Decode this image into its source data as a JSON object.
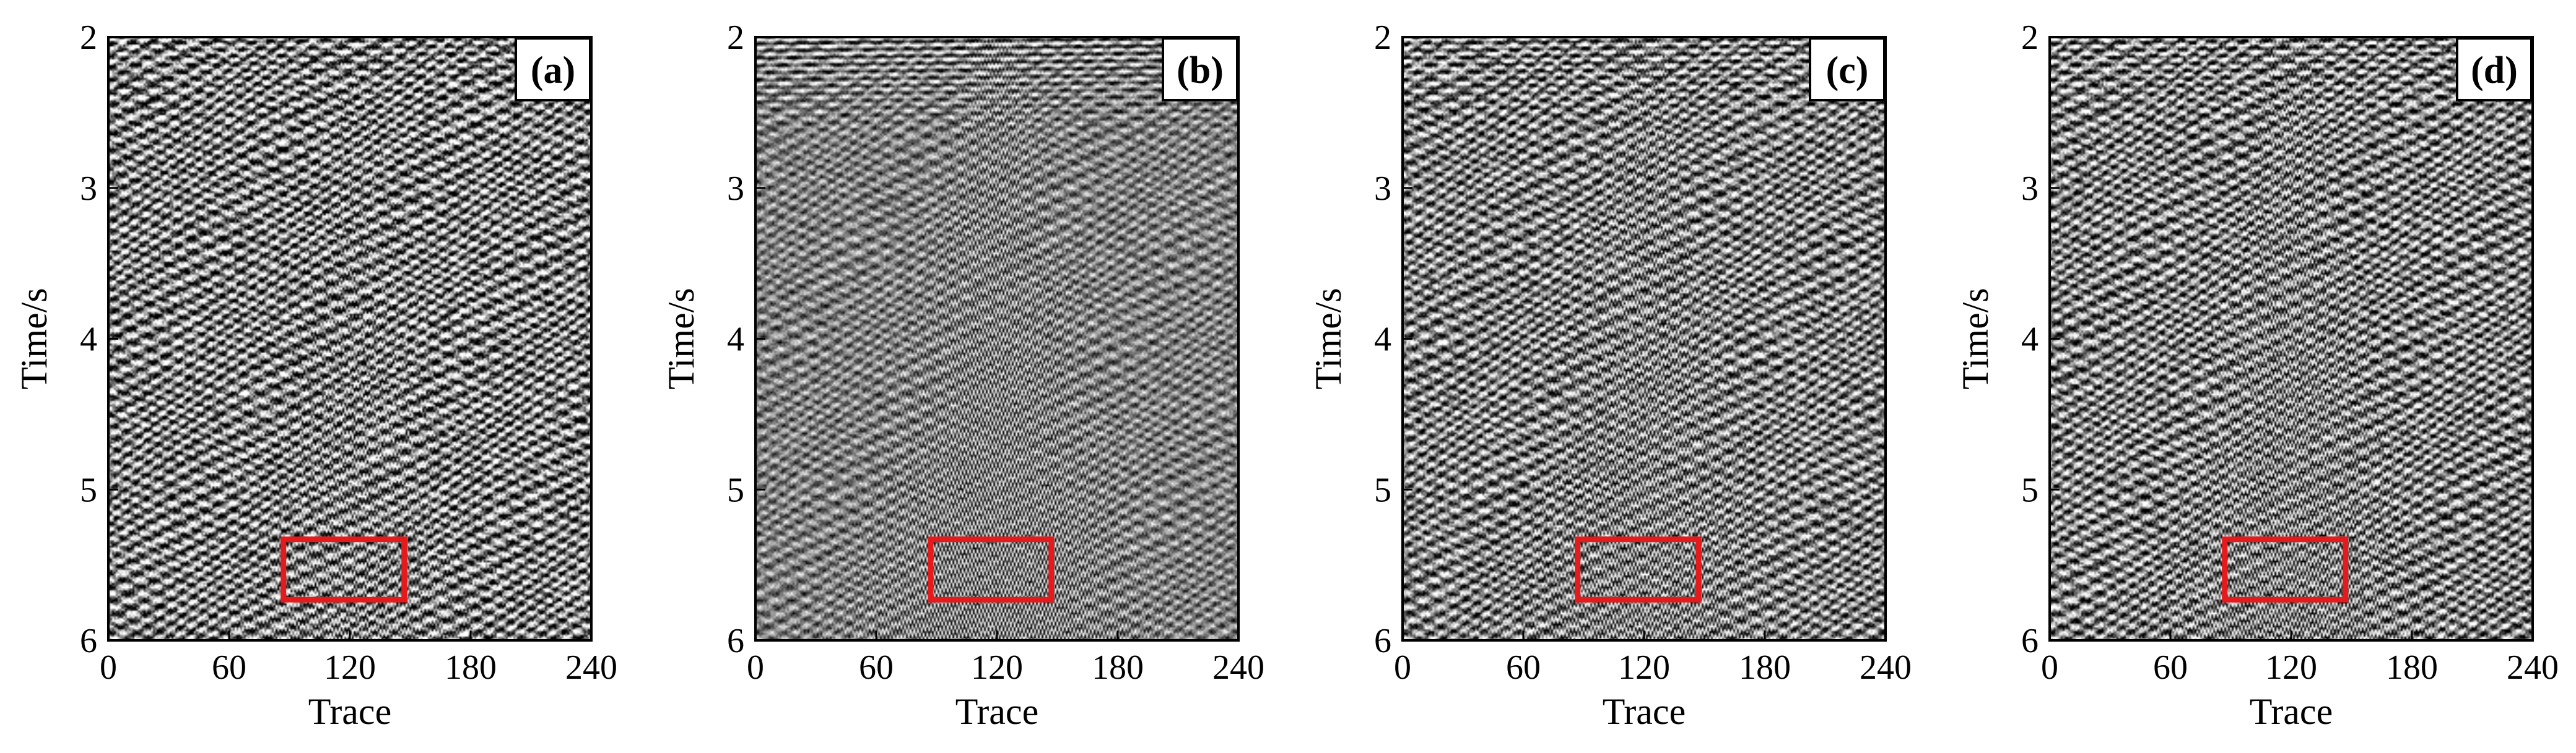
{
  "chart_data": [
    {
      "type": "heatmap",
      "panel_label": "(a)",
      "xlabel": "Trace",
      "ylabel": "Time/s",
      "xlim": [
        0,
        240
      ],
      "ylim": [
        6,
        2
      ],
      "x_ticks": [
        "0",
        "60",
        "120",
        "180",
        "240"
      ],
      "y_ticks": [
        "2",
        "3",
        "4",
        "5",
        "6"
      ],
      "highlight_box": {
        "x": [
          87,
          147
        ],
        "y": [
          5.33,
          5.73
        ],
        "color": "#e41a1c"
      },
      "texture": {
        "noise_level": 0.92,
        "hyperbola_strength": 0.45,
        "top_reflection_strength": 0.35
      }
    },
    {
      "type": "heatmap",
      "panel_label": "(b)",
      "xlabel": "Trace",
      "ylabel": "Time/s",
      "xlim": [
        0,
        240
      ],
      "ylim": [
        6,
        2
      ],
      "x_ticks": [
        "0",
        "60",
        "120",
        "180",
        "240"
      ],
      "y_ticks": [
        "2",
        "3",
        "4",
        "5",
        "6"
      ],
      "highlight_box": {
        "x": [
          87,
          147
        ],
        "y": [
          5.33,
          5.73
        ],
        "color": "#e41a1c"
      },
      "texture": {
        "noise_level": 0.45,
        "hyperbola_strength": 1.0,
        "top_reflection_strength": 0.55
      }
    },
    {
      "type": "heatmap",
      "panel_label": "(c)",
      "xlabel": "Trace",
      "ylabel": "Time/s",
      "xlim": [
        0,
        240
      ],
      "ylim": [
        6,
        2
      ],
      "x_ticks": [
        "0",
        "60",
        "120",
        "180",
        "240"
      ],
      "y_ticks": [
        "2",
        "3",
        "4",
        "5",
        "6"
      ],
      "highlight_box": {
        "x": [
          87,
          147
        ],
        "y": [
          5.33,
          5.73
        ],
        "color": "#e41a1c"
      },
      "texture": {
        "noise_level": 0.75,
        "hyperbola_strength": 0.75,
        "top_reflection_strength": 0.45
      }
    },
    {
      "type": "heatmap",
      "panel_label": "(d)",
      "xlabel": "Trace",
      "ylabel": "Time/s",
      "xlim": [
        0,
        240
      ],
      "ylim": [
        6,
        2
      ],
      "x_ticks": [
        "0",
        "60",
        "120",
        "180",
        "240"
      ],
      "y_ticks": [
        "2",
        "3",
        "4",
        "5",
        "6"
      ],
      "highlight_box": {
        "x": [
          87,
          147
        ],
        "y": [
          5.33,
          5.73
        ],
        "color": "#e41a1c"
      },
      "texture": {
        "noise_level": 0.8,
        "hyperbola_strength": 0.85,
        "top_reflection_strength": 0.4
      }
    }
  ]
}
